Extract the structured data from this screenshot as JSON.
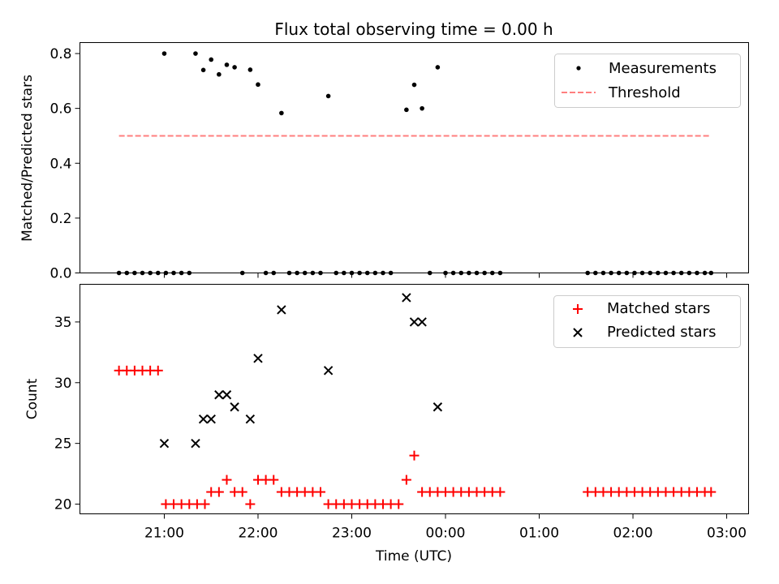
{
  "title": "Flux total observing time = 0.00 h",
  "x_axis": {
    "label": "Time (UTC)",
    "ticks": [
      "21:00",
      "22:00",
      "23:00",
      "00:00",
      "01:00",
      "02:00",
      "03:00"
    ],
    "range": [
      "20:06",
      "03:14"
    ]
  },
  "colors": {
    "measurements": "#000000",
    "threshold": "#ff7f7f",
    "matched": "#ff0000",
    "predicted": "#000000"
  },
  "chart_data": [
    {
      "type": "scatter",
      "ylabel": "Matched/Predicted stars",
      "ylim": [
        0,
        0.84
      ],
      "yticks": [
        "0.0",
        "0.2",
        "0.4",
        "0.6",
        "0.8"
      ],
      "legend": {
        "placement": "top-right",
        "entries": [
          {
            "label": "Measurements",
            "marker": "dot",
            "color": "#000000"
          },
          {
            "label": "Threshold",
            "marker": "dashed-line",
            "color": "#ff7f7f"
          }
        ]
      },
      "series": [
        {
          "name": "Measurements",
          "points": [
            [
              "20:31",
              0.0
            ],
            [
              "20:36",
              0.0
            ],
            [
              "20:41",
              0.0
            ],
            [
              "20:46",
              0.0
            ],
            [
              "20:51",
              0.0
            ],
            [
              "20:56",
              0.0
            ],
            [
              "21:01",
              0.0
            ],
            [
              "21:00",
              0.8
            ],
            [
              "21:06",
              0.0
            ],
            [
              "21:11",
              0.0
            ],
            [
              "21:16",
              0.0
            ],
            [
              "21:20",
              0.8
            ],
            [
              "21:25",
              0.74
            ],
            [
              "21:30",
              0.778
            ],
            [
              "21:35",
              0.724
            ],
            [
              "21:40",
              0.759
            ],
            [
              "21:45",
              0.75
            ],
            [
              "21:50",
              0.0
            ],
            [
              "21:55",
              0.741
            ],
            [
              "22:00",
              0.687
            ],
            [
              "22:05",
              0.0
            ],
            [
              "22:10",
              0.0
            ],
            [
              "22:15",
              0.583
            ],
            [
              "22:20",
              0.0
            ],
            [
              "22:25",
              0.0
            ],
            [
              "22:30",
              0.0
            ],
            [
              "22:35",
              0.0
            ],
            [
              "22:40",
              0.0
            ],
            [
              "22:45",
              0.645
            ],
            [
              "22:50",
              0.0
            ],
            [
              "22:55",
              0.0
            ],
            [
              "23:00",
              0.0
            ],
            [
              "23:05",
              0.0
            ],
            [
              "23:10",
              0.0
            ],
            [
              "23:15",
              0.0
            ],
            [
              "23:20",
              0.0
            ],
            [
              "23:25",
              0.0
            ],
            [
              "23:35",
              0.595
            ],
            [
              "23:40",
              0.686
            ],
            [
              "23:45",
              0.6
            ],
            [
              "23:50",
              0.0
            ],
            [
              "23:55",
              0.75
            ],
            [
              "00:00",
              0.0
            ],
            [
              "00:05",
              0.0
            ],
            [
              "00:10",
              0.0
            ],
            [
              "00:15",
              0.0
            ],
            [
              "00:20",
              0.0
            ],
            [
              "00:25",
              0.0
            ],
            [
              "00:30",
              0.0
            ],
            [
              "00:35",
              0.0
            ],
            [
              "01:31",
              0.0
            ],
            [
              "01:36",
              0.0
            ],
            [
              "01:41",
              0.0
            ],
            [
              "01:46",
              0.0
            ],
            [
              "01:51",
              0.0
            ],
            [
              "01:56",
              0.0
            ],
            [
              "02:01",
              0.0
            ],
            [
              "02:06",
              0.0
            ],
            [
              "02:11",
              0.0
            ],
            [
              "02:16",
              0.0
            ],
            [
              "02:21",
              0.0
            ],
            [
              "02:26",
              0.0
            ],
            [
              "02:31",
              0.0
            ],
            [
              "02:36",
              0.0
            ],
            [
              "02:41",
              0.0
            ],
            [
              "02:46",
              0.0
            ],
            [
              "02:50",
              0.0
            ]
          ]
        },
        {
          "name": "Threshold",
          "points": [
            [
              "20:31",
              0.5
            ],
            [
              "02:50",
              0.5
            ]
          ]
        }
      ]
    },
    {
      "type": "scatter",
      "ylabel": "Count",
      "xlabel": "Time (UTC)",
      "ylim": [
        19.2,
        38.1
      ],
      "yticks": [
        "20",
        "25",
        "30",
        "35"
      ],
      "legend": {
        "placement": "top-right",
        "entries": [
          {
            "label": "Matched stars",
            "marker": "plus",
            "color": "#ff0000"
          },
          {
            "label": "Predicted stars",
            "marker": "cross",
            "color": "#000000"
          }
        ]
      },
      "series": [
        {
          "name": "Matched stars",
          "points": [
            [
              "20:31",
              31
            ],
            [
              "20:36",
              31
            ],
            [
              "20:41",
              31
            ],
            [
              "20:46",
              31
            ],
            [
              "20:51",
              31
            ],
            [
              "20:56",
              31
            ],
            [
              "21:01",
              20
            ],
            [
              "21:06",
              20
            ],
            [
              "21:11",
              20
            ],
            [
              "21:16",
              20
            ],
            [
              "21:21",
              20
            ],
            [
              "21:26",
              20
            ],
            [
              "21:30",
              21
            ],
            [
              "21:35",
              21
            ],
            [
              "21:40",
              22
            ],
            [
              "21:45",
              21
            ],
            [
              "21:50",
              21
            ],
            [
              "21:55",
              20
            ],
            [
              "22:00",
              22
            ],
            [
              "22:05",
              22
            ],
            [
              "22:10",
              22
            ],
            [
              "22:15",
              21
            ],
            [
              "22:20",
              21
            ],
            [
              "22:25",
              21
            ],
            [
              "22:30",
              21
            ],
            [
              "22:35",
              21
            ],
            [
              "22:40",
              21
            ],
            [
              "22:45",
              20
            ],
            [
              "22:50",
              20
            ],
            [
              "22:55",
              20
            ],
            [
              "23:00",
              20
            ],
            [
              "23:05",
              20
            ],
            [
              "23:10",
              20
            ],
            [
              "23:15",
              20
            ],
            [
              "23:20",
              20
            ],
            [
              "23:25",
              20
            ],
            [
              "23:30",
              20
            ],
            [
              "23:35",
              22
            ],
            [
              "23:40",
              24
            ],
            [
              "23:45",
              21
            ],
            [
              "23:50",
              21
            ],
            [
              "23:55",
              21
            ],
            [
              "00:00",
              21
            ],
            [
              "00:05",
              21
            ],
            [
              "00:10",
              21
            ],
            [
              "00:15",
              21
            ],
            [
              "00:20",
              21
            ],
            [
              "00:25",
              21
            ],
            [
              "00:30",
              21
            ],
            [
              "00:35",
              21
            ],
            [
              "01:31",
              21
            ],
            [
              "01:36",
              21
            ],
            [
              "01:41",
              21
            ],
            [
              "01:46",
              21
            ],
            [
              "01:51",
              21
            ],
            [
              "01:56",
              21
            ],
            [
              "02:01",
              21
            ],
            [
              "02:06",
              21
            ],
            [
              "02:11",
              21
            ],
            [
              "02:16",
              21
            ],
            [
              "02:21",
              21
            ],
            [
              "02:26",
              21
            ],
            [
              "02:31",
              21
            ],
            [
              "02:36",
              21
            ],
            [
              "02:41",
              21
            ],
            [
              "02:46",
              21
            ],
            [
              "02:50",
              21
            ]
          ]
        },
        {
          "name": "Predicted stars",
          "points": [
            [
              "21:00",
              25
            ],
            [
              "21:20",
              25
            ],
            [
              "21:25",
              27
            ],
            [
              "21:30",
              27
            ],
            [
              "21:35",
              29
            ],
            [
              "21:40",
              29
            ],
            [
              "21:45",
              28
            ],
            [
              "21:55",
              27
            ],
            [
              "22:00",
              32
            ],
            [
              "22:15",
              36
            ],
            [
              "22:45",
              31
            ],
            [
              "23:35",
              37
            ],
            [
              "23:40",
              35
            ],
            [
              "23:45",
              35
            ],
            [
              "23:55",
              28
            ]
          ]
        }
      ]
    }
  ]
}
